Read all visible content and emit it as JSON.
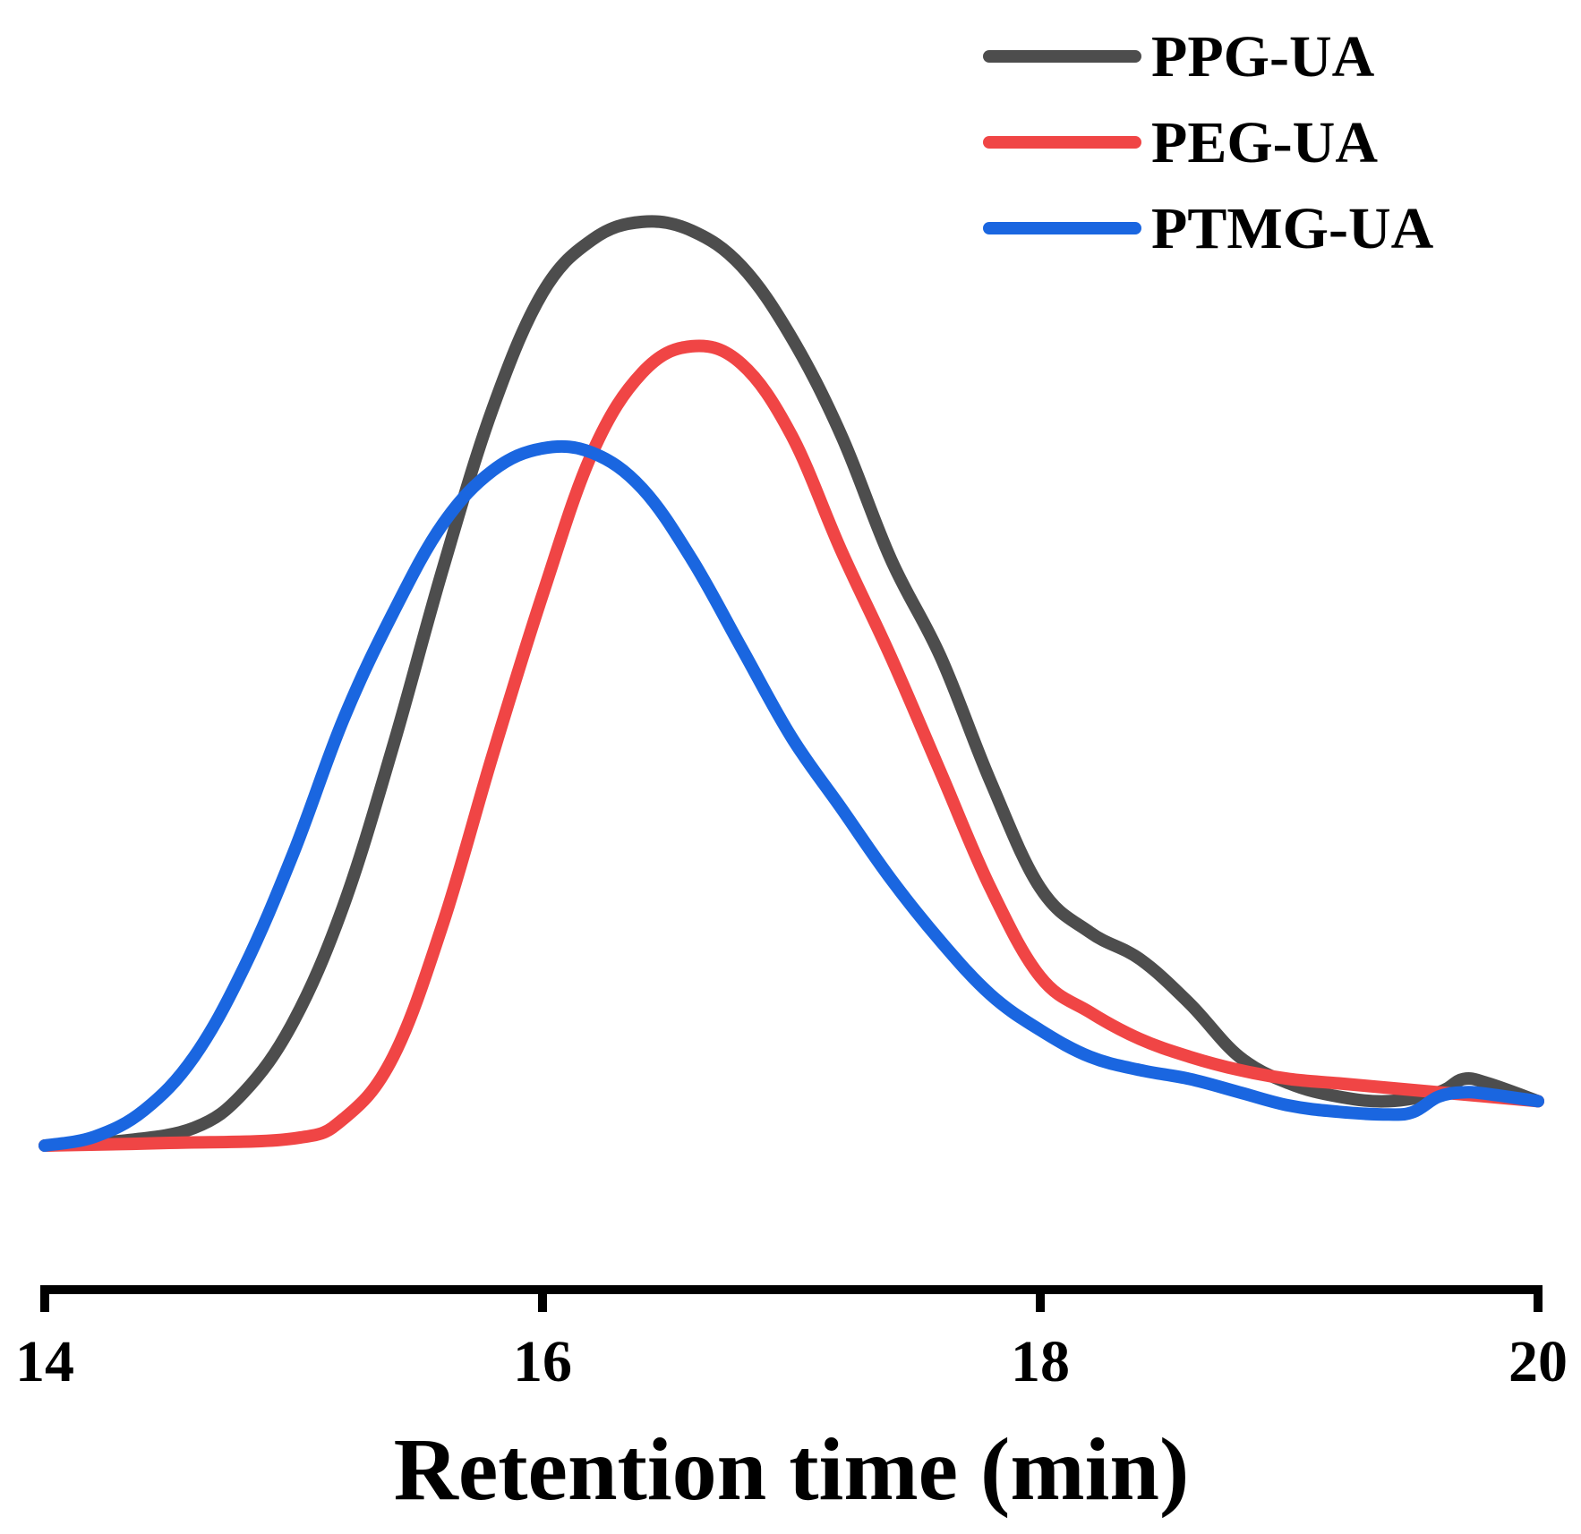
{
  "chart_data": {
    "type": "line",
    "title": "",
    "xlabel": "Retention time (min)",
    "ylabel": "",
    "xlim": [
      14,
      20
    ],
    "ylim": [
      0,
      1.05
    ],
    "xticks": [
      14,
      16,
      18,
      20
    ],
    "xtick_labels": [
      "14",
      "16",
      "18",
      "20"
    ],
    "y_axis_visible": false,
    "grid": false,
    "legend_position": "top-right",
    "series": [
      {
        "name": "PPG-UA",
        "color": "#4d4d4d",
        "x": [
          14.0,
          14.3,
          14.6,
          14.8,
          15.0,
          15.2,
          15.4,
          15.6,
          15.8,
          16.0,
          16.2,
          16.4,
          16.6,
          16.8,
          17.0,
          17.2,
          17.4,
          17.6,
          17.8,
          18.0,
          18.2,
          18.4,
          18.6,
          18.8,
          19.0,
          19.2,
          19.4,
          19.6,
          19.7,
          19.8,
          20.0
        ],
        "y": [
          0.0,
          0.005,
          0.02,
          0.06,
          0.14,
          0.27,
          0.45,
          0.65,
          0.83,
          0.96,
          1.02,
          1.04,
          1.03,
          0.99,
          0.91,
          0.8,
          0.66,
          0.55,
          0.41,
          0.29,
          0.24,
          0.21,
          0.16,
          0.1,
          0.07,
          0.055,
          0.05,
          0.06,
          0.075,
          0.07,
          0.05
        ]
      },
      {
        "name": "PEG-UA",
        "color": "#f04545",
        "x": [
          14.0,
          14.5,
          15.0,
          15.2,
          15.4,
          15.6,
          15.8,
          16.0,
          16.2,
          16.4,
          16.6,
          16.8,
          17.0,
          17.2,
          17.4,
          17.6,
          17.8,
          18.0,
          18.2,
          18.4,
          18.6,
          18.8,
          19.0,
          19.2,
          19.4,
          19.6,
          19.8,
          20.0
        ],
        "y": [
          0.0,
          0.003,
          0.008,
          0.03,
          0.1,
          0.25,
          0.44,
          0.62,
          0.78,
          0.87,
          0.9,
          0.88,
          0.8,
          0.67,
          0.55,
          0.42,
          0.29,
          0.19,
          0.15,
          0.12,
          0.1,
          0.085,
          0.075,
          0.07,
          0.065,
          0.06,
          0.055,
          0.05
        ]
      },
      {
        "name": "PTMG-UA",
        "color": "#1a66e0",
        "x": [
          14.0,
          14.2,
          14.4,
          14.6,
          14.8,
          15.0,
          15.2,
          15.4,
          15.6,
          15.8,
          16.0,
          16.2,
          16.4,
          16.6,
          16.8,
          17.0,
          17.2,
          17.4,
          17.6,
          17.8,
          18.0,
          18.2,
          18.4,
          18.6,
          18.8,
          19.0,
          19.2,
          19.4,
          19.5,
          19.6,
          19.7,
          19.8,
          20.0
        ],
        "y": [
          0.0,
          0.01,
          0.04,
          0.1,
          0.2,
          0.33,
          0.48,
          0.6,
          0.7,
          0.76,
          0.785,
          0.78,
          0.74,
          0.66,
          0.56,
          0.46,
          0.38,
          0.3,
          0.23,
          0.17,
          0.13,
          0.1,
          0.085,
          0.075,
          0.06,
          0.045,
          0.038,
          0.035,
          0.038,
          0.055,
          0.06,
          0.058,
          0.05
        ]
      }
    ]
  }
}
